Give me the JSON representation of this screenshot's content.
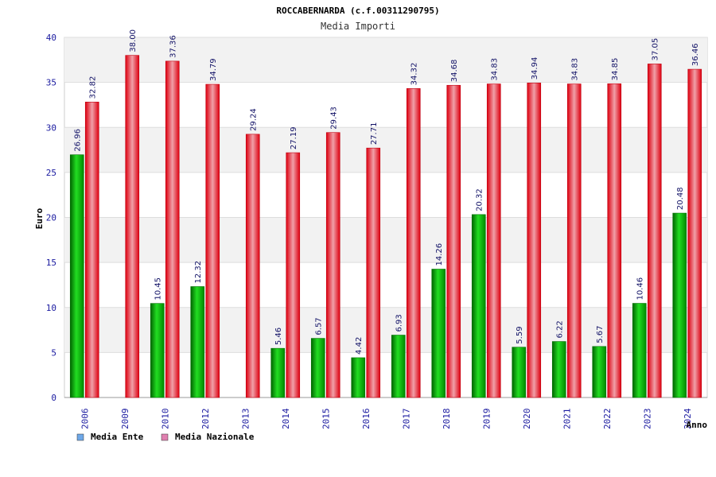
{
  "chart_data": {
    "type": "bar",
    "title": "ROCCABERNARDA (c.f.00311290795)",
    "subtitle": "Media Importi",
    "ylabel": "Euro",
    "xlabel": "Anno",
    "ylim": [
      0,
      40
    ],
    "yticks": [
      "0",
      "5",
      "10",
      "15",
      "20",
      "25",
      "30",
      "35",
      "40"
    ],
    "grid": true,
    "legend_position": "bottom-left",
    "categories": [
      "2006",
      "2009",
      "2010",
      "2012",
      "2013",
      "2014",
      "2015",
      "2016",
      "2017",
      "2018",
      "2019",
      "2020",
      "2021",
      "2022",
      "2023",
      "2024"
    ],
    "series": [
      {
        "name": "Media Ente",
        "legend_color": "#6ea8e8",
        "bar_color": "#00c000",
        "values": [
          26.96,
          null,
          10.45,
          12.32,
          null,
          5.46,
          6.57,
          4.42,
          6.93,
          14.26,
          20.32,
          5.59,
          6.22,
          5.67,
          10.46,
          20.48
        ],
        "labels": [
          "26.96",
          "",
          "10.45",
          "12.32",
          "",
          "5.46",
          "6.57",
          "4.42",
          "6.93",
          "14.26",
          "20.32",
          "5.59",
          "6.22",
          "5.67",
          "10.46",
          "20.48"
        ]
      },
      {
        "name": "Media Nazionale",
        "legend_color": "#e080b0",
        "bar_color": "#ee2030",
        "values": [
          32.82,
          38.0,
          37.36,
          34.79,
          29.24,
          27.19,
          29.43,
          27.71,
          34.32,
          34.68,
          34.83,
          34.94,
          34.83,
          34.85,
          37.05,
          36.46
        ],
        "labels": [
          "32.82",
          "38.00",
          "37.36",
          "34.79",
          "29.24",
          "27.19",
          "29.43",
          "27.71",
          "34.32",
          "34.68",
          "34.83",
          "34.94",
          "34.83",
          "34.85",
          "37.05",
          "36.46"
        ]
      }
    ]
  }
}
